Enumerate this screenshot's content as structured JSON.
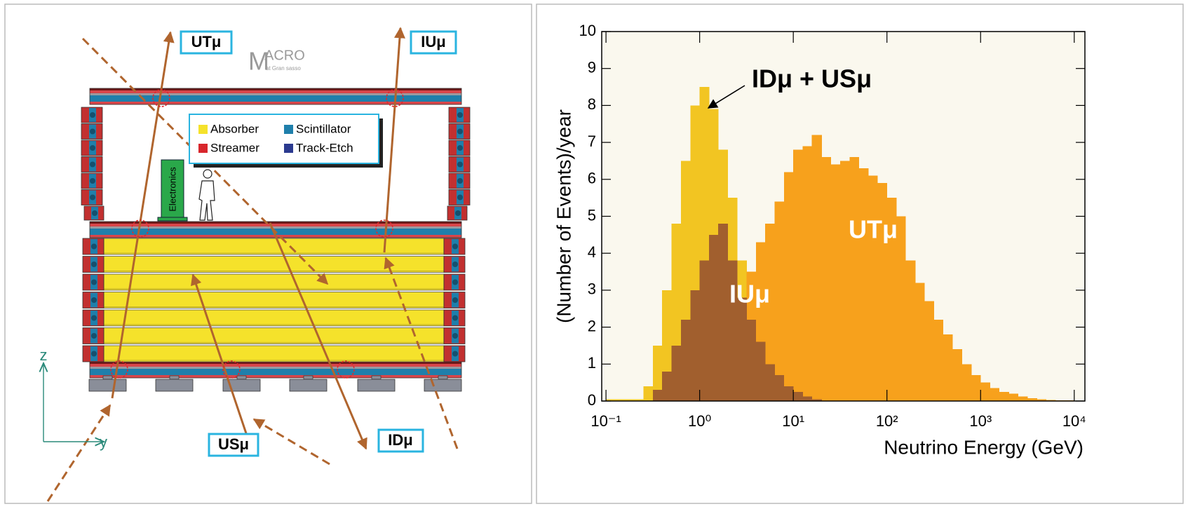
{
  "diagram": {
    "labels": [
      "UTμ",
      "IUμ",
      "USμ",
      "IDμ"
    ],
    "logo": {
      "main": "M",
      "sup": "ACRO",
      "sub": "at Gran sasso"
    },
    "legend": [
      "Absorber",
      "Scintillator",
      "Streamer",
      "Track-Etch"
    ],
    "electronics": "Electronics",
    "axes": [
      "z",
      "y"
    ]
  },
  "chart_data": {
    "type": "histogram",
    "xlabel": "Neutrino Energy (GeV)",
    "ylabel": "(Number of Events)/year",
    "xscale": "log",
    "xlim": [
      0.09,
      13000
    ],
    "ylim": [
      0,
      10
    ],
    "xticks": [
      {
        "value": 0.1,
        "label": "10⁻¹"
      },
      {
        "value": 1,
        "label": "10⁰"
      },
      {
        "value": 10,
        "label": "10¹"
      },
      {
        "value": 100,
        "label": "10²"
      },
      {
        "value": 1000,
        "label": "10³"
      },
      {
        "value": 10000,
        "label": "10⁴"
      }
    ],
    "yticks": [
      0,
      1,
      2,
      3,
      4,
      5,
      6,
      7,
      8,
      9,
      10
    ],
    "background": "#faf8ee",
    "bins": [
      0.1,
      0.126,
      0.158,
      0.2,
      0.251,
      0.316,
      0.398,
      0.501,
      0.631,
      0.794,
      1,
      1.26,
      1.58,
      2,
      2.51,
      3.16,
      3.98,
      5.01,
      6.31,
      7.94,
      10,
      12.6,
      15.8,
      20,
      25.1,
      31.6,
      39.8,
      50.1,
      63.1,
      79.4,
      100,
      126,
      158,
      200,
      251,
      316,
      398,
      501,
      631,
      794,
      1000,
      1260,
      1580,
      2000,
      2510,
      3160,
      3980,
      5010,
      6310,
      7940,
      10000
    ],
    "series": [
      {
        "name": "IDμ + USμ",
        "color": "#f2c522",
        "values": [
          0.05,
          0.05,
          0.05,
          0.05,
          0.4,
          1.5,
          3.0,
          4.8,
          6.5,
          8.0,
          8.5,
          7.9,
          6.8,
          5.5,
          3.8,
          2.8,
          2.2,
          1.7,
          1.3,
          1.0,
          0.7,
          0.5,
          0.35,
          0.25,
          0.15,
          0.1,
          0.05,
          0,
          0,
          0,
          0,
          0,
          0,
          0,
          0,
          0,
          0,
          0,
          0,
          0,
          0,
          0,
          0,
          0,
          0,
          0,
          0,
          0,
          0,
          0
        ]
      },
      {
        "name": "UTμ",
        "color": "#f7a11c",
        "values": [
          0,
          0,
          0,
          0,
          0,
          0,
          0,
          0,
          0,
          0,
          0,
          0,
          0.3,
          0.8,
          1.8,
          3.5,
          4.3,
          4.8,
          5.4,
          6.2,
          6.8,
          6.9,
          7.2,
          6.6,
          6.4,
          6.5,
          6.6,
          6.3,
          6.1,
          5.9,
          5.5,
          5.0,
          3.8,
          3.2,
          2.7,
          2.2,
          1.8,
          1.4,
          1.0,
          0.7,
          0.5,
          0.35,
          0.25,
          0.2,
          0.12,
          0.08,
          0.05,
          0.03,
          0.02,
          0.02
        ]
      },
      {
        "name": "IUμ",
        "color": "#a15f2e",
        "values": [
          0,
          0,
          0,
          0,
          0,
          0.3,
          0.8,
          1.5,
          2.2,
          3.0,
          3.8,
          4.5,
          4.8,
          3.8,
          2.8,
          2.2,
          1.6,
          1.0,
          0.7,
          0.4,
          0.25,
          0.12,
          0.05,
          0,
          0,
          0,
          0,
          0,
          0,
          0,
          0,
          0,
          0,
          0,
          0,
          0,
          0,
          0,
          0,
          0,
          0,
          0,
          0,
          0,
          0,
          0,
          0,
          0,
          0,
          0
        ]
      }
    ]
  }
}
